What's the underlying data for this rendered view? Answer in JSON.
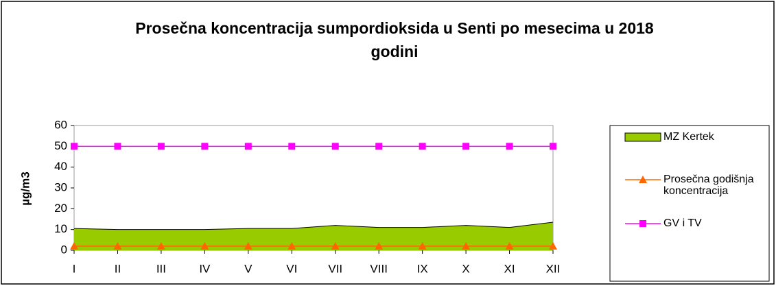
{
  "chart_data": {
    "type": "line",
    "title": "Prosečna koncentracija sumpordioksida u Senti po mesecima u 2018 godini",
    "ylabel": "µg/m3",
    "categories": [
      "I",
      "II",
      "III",
      "IV",
      "V",
      "VI",
      "VII",
      "VIII",
      "IX",
      "X",
      "XI",
      "XII"
    ],
    "series": [
      {
        "name": "MZ Kertek",
        "kind": "area",
        "color": "#99cc00",
        "values": [
          10.5,
          10,
          10,
          10,
          10.5,
          10.5,
          12,
          11,
          11,
          12,
          11,
          13.5
        ]
      },
      {
        "name": "Prosečna godišnja koncentracija",
        "kind": "line",
        "marker": "triangle",
        "color": "#ff6600",
        "values": [
          2,
          2,
          2,
          2,
          2,
          2,
          2,
          2,
          2,
          2,
          2,
          2
        ]
      },
      {
        "name": "GV i TV",
        "kind": "line",
        "marker": "square",
        "color": "#ff00ff",
        "values": [
          50,
          50,
          50,
          50,
          50,
          50,
          50,
          50,
          50,
          50,
          50,
          50
        ]
      }
    ],
    "ylim": [
      0,
      60
    ],
    "yticks": [
      0,
      10,
      20,
      30,
      40,
      50,
      60
    ],
    "legend": "right"
  }
}
